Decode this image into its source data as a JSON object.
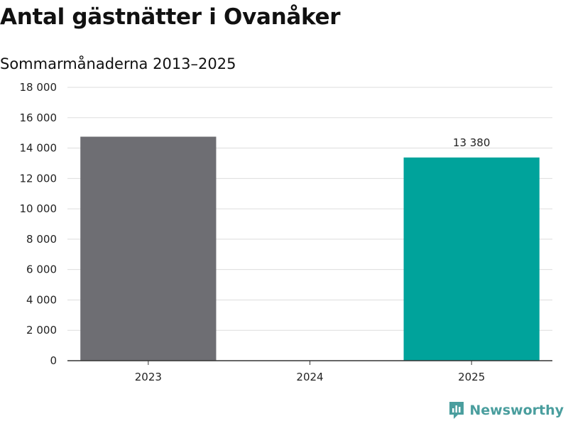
{
  "title": "Antal gästnätter i Ovanåker",
  "subtitle": "Sommarmånaderna 2013–2025",
  "brand": {
    "name": "Newsworthy",
    "icon": "newsworthy-logo-icon",
    "color": "#4a9e9e"
  },
  "chart_data": {
    "type": "bar",
    "title": "Antal gästnätter i Ovanåker",
    "subtitle": "Sommarmånaderna 2013–2025",
    "xlabel": "",
    "ylabel": "",
    "categories": [
      "2023",
      "2024",
      "2025"
    ],
    "values": [
      14750,
      null,
      13380
    ],
    "bar_colors": [
      "#6e6e73",
      "#6e6e73",
      "#00a39b"
    ],
    "data_labels": [
      null,
      null,
      "13 380"
    ],
    "ylim": [
      0,
      18000
    ],
    "yticks": [
      0,
      2000,
      4000,
      6000,
      8000,
      10000,
      12000,
      14000,
      16000,
      18000
    ],
    "ytick_labels": [
      "0",
      "2 000",
      "4 000",
      "6 000",
      "8 000",
      "10 000",
      "12 000",
      "14 000",
      "16 000",
      "18 000"
    ],
    "grid": true,
    "legend": "none",
    "grid_color": "#dddddd",
    "axis_color": "#333333"
  }
}
